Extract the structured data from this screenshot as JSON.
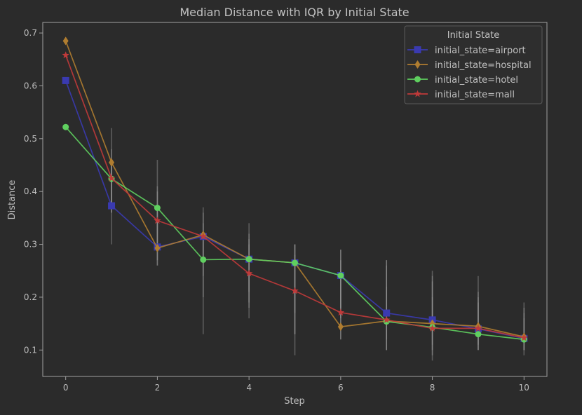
{
  "chart_data": {
    "type": "line",
    "title": "Median Distance with IQR by Initial State",
    "xlabel": "Step",
    "ylabel": "Distance",
    "xlim": [
      -0.5,
      10.5
    ],
    "ylim": [
      0.05,
      0.72
    ],
    "xticks": [
      0,
      2,
      4,
      6,
      8,
      10
    ],
    "yticks": [
      0.1,
      0.2,
      0.3,
      0.4,
      0.5,
      0.6,
      0.7
    ],
    "x": [
      0,
      1,
      2,
      3,
      4,
      5,
      6,
      7,
      8,
      9,
      10
    ],
    "grid": false,
    "legend": {
      "title": "Initial State",
      "placement": "top-right"
    },
    "series": [
      {
        "name": "initial_state=airport",
        "color": "#3a3ab0",
        "marker": "square",
        "values": [
          0.61,
          0.373,
          0.295,
          0.315,
          0.272,
          0.265,
          0.241,
          0.17,
          0.157,
          0.14,
          0.122
        ],
        "iqr": [
          [
            0.61,
            0.61
          ],
          [
            0.3,
            0.45
          ],
          [
            0.26,
            0.37
          ],
          [
            0.27,
            0.34
          ],
          [
            0.19,
            0.31
          ],
          [
            0.17,
            0.3
          ],
          [
            0.18,
            0.29
          ],
          [
            0.12,
            0.27
          ],
          [
            0.11,
            0.24
          ],
          [
            0.11,
            0.21
          ],
          [
            0.1,
            0.17
          ]
        ]
      },
      {
        "name": "initial_state=hospital",
        "color": "#b07d30",
        "marker": "diamond",
        "values": [
          0.685,
          0.455,
          0.293,
          0.318,
          0.272,
          0.265,
          0.144,
          0.155,
          0.15,
          0.145,
          0.125
        ],
        "iqr": [
          [
            0.685,
            0.685
          ],
          [
            0.36,
            0.52
          ],
          [
            0.26,
            0.46
          ],
          [
            0.13,
            0.37
          ],
          [
            0.16,
            0.34
          ],
          [
            0.09,
            0.3
          ],
          [
            0.12,
            0.27
          ],
          [
            0.1,
            0.27
          ],
          [
            0.08,
            0.25
          ],
          [
            0.1,
            0.24
          ],
          [
            0.09,
            0.19
          ]
        ]
      },
      {
        "name": "initial_state=hotel",
        "color": "#5fcf5f",
        "marker": "circle",
        "values": [
          0.522,
          0.424,
          0.369,
          0.271,
          0.272,
          0.265,
          0.241,
          0.154,
          0.143,
          0.13,
          0.12
        ],
        "iqr": [
          [
            0.522,
            0.522
          ],
          [
            0.36,
            0.48
          ],
          [
            0.29,
            0.41
          ],
          [
            0.2,
            0.31
          ],
          [
            0.21,
            0.32
          ],
          [
            0.13,
            0.3
          ],
          [
            0.16,
            0.29
          ],
          [
            0.1,
            0.26
          ],
          [
            0.1,
            0.2
          ],
          [
            0.1,
            0.19
          ],
          [
            0.1,
            0.16
          ]
        ]
      },
      {
        "name": "initial_state=mall",
        "color": "#c03a3a",
        "marker": "star",
        "values": [
          0.658,
          0.425,
          0.345,
          0.315,
          0.245,
          0.212,
          0.171,
          0.157,
          0.141,
          0.141,
          0.123
        ],
        "iqr": [
          [
            0.658,
            0.658
          ],
          [
            0.37,
            0.46
          ],
          [
            0.27,
            0.4
          ],
          [
            0.24,
            0.36
          ],
          [
            0.18,
            0.3
          ],
          [
            0.13,
            0.28
          ],
          [
            0.12,
            0.25
          ],
          [
            0.1,
            0.22
          ],
          [
            0.09,
            0.23
          ],
          [
            0.1,
            0.2
          ],
          [
            0.1,
            0.18
          ]
        ]
      }
    ]
  }
}
